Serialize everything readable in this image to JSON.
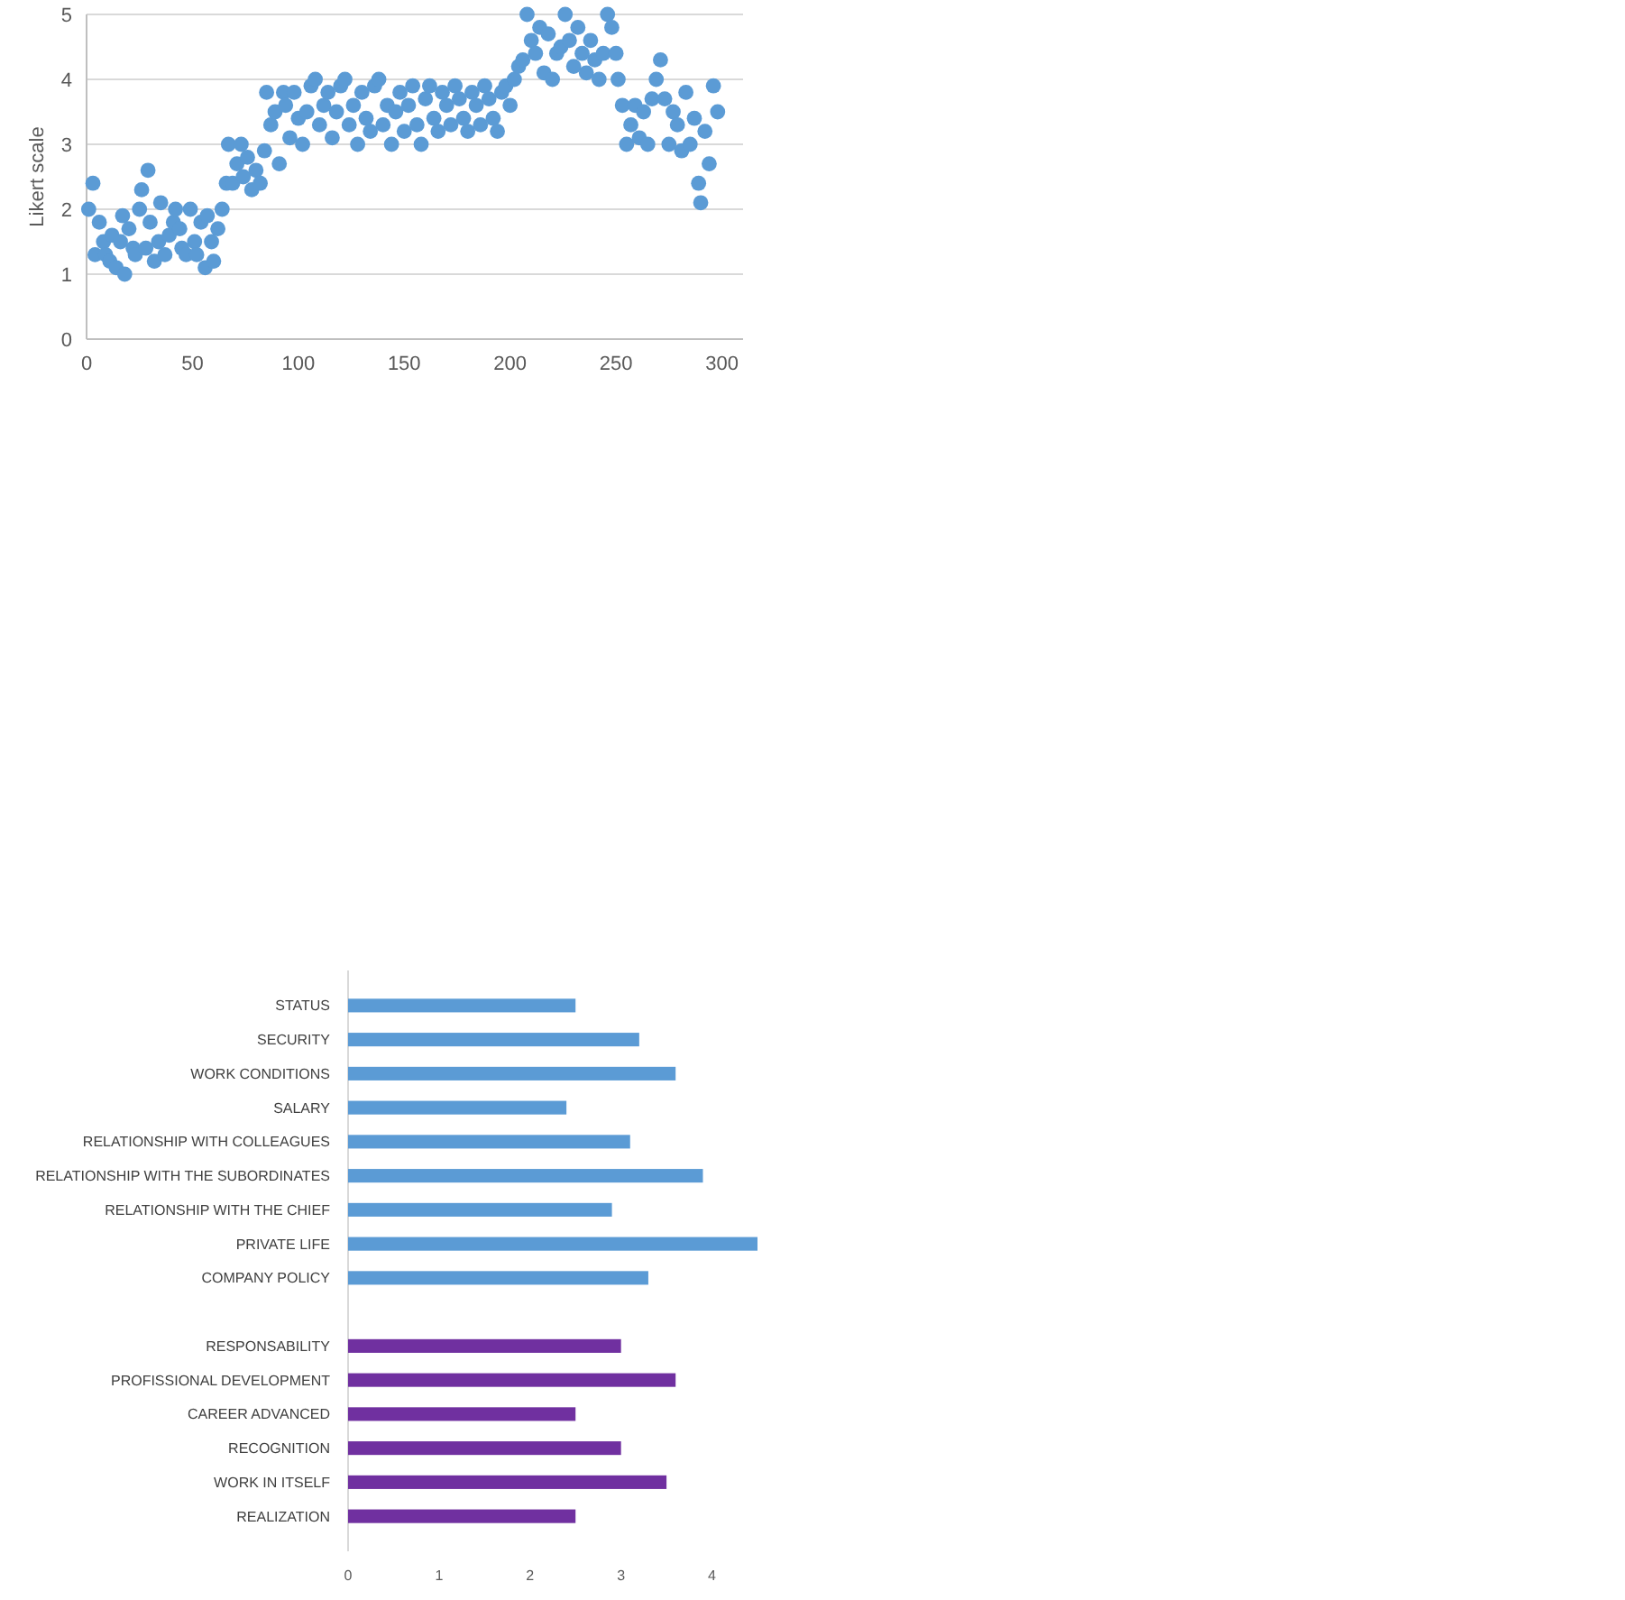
{
  "chart_data": [
    {
      "type": "scatter",
      "ylabel": "Likert scale",
      "color": "#5b9bd5",
      "marker": "circle",
      "grid": "y",
      "xlim": [
        0,
        310
      ],
      "ylim": [
        0,
        5
      ],
      "xticks": [
        0,
        50,
        100,
        150,
        200,
        250,
        300
      ],
      "yticks": [
        0,
        1,
        2,
        3,
        4,
        5
      ],
      "x": [
        1,
        3,
        4,
        6,
        8,
        9,
        11,
        12,
        14,
        16,
        17,
        18,
        20,
        22,
        23,
        25,
        26,
        28,
        29,
        30,
        32,
        34,
        35,
        37,
        39,
        41,
        42,
        44,
        45,
        47,
        49,
        51,
        52,
        54,
        56,
        57,
        59,
        60,
        62,
        64,
        66,
        67,
        69,
        71,
        73,
        74,
        76,
        78,
        80,
        82,
        84,
        85,
        87,
        89,
        91,
        93,
        94,
        96,
        98,
        100,
        102,
        104,
        106,
        108,
        110,
        112,
        114,
        116,
        118,
        120,
        122,
        124,
        126,
        128,
        130,
        132,
        134,
        136,
        138,
        140,
        142,
        144,
        146,
        148,
        150,
        152,
        154,
        156,
        158,
        160,
        162,
        164,
        166,
        168,
        170,
        172,
        174,
        176,
        178,
        180,
        182,
        184,
        186,
        188,
        190,
        192,
        194,
        196,
        198,
        200,
        202,
        204,
        206,
        208,
        210,
        212,
        214,
        216,
        218,
        220,
        222,
        224,
        226,
        228,
        230,
        232,
        234,
        236,
        238,
        240,
        242,
        244,
        246,
        248,
        250,
        251,
        253,
        255,
        257,
        259,
        261,
        263,
        265,
        267,
        269,
        271,
        273,
        275,
        277,
        279,
        281,
        283,
        285,
        287,
        289,
        290,
        292,
        294,
        296,
        298
      ],
      "values": [
        2.0,
        2.4,
        1.3,
        1.8,
        1.5,
        1.3,
        1.2,
        1.6,
        1.1,
        1.5,
        1.9,
        1.0,
        1.7,
        1.4,
        1.3,
        2.0,
        2.3,
        1.4,
        2.6,
        1.8,
        1.2,
        1.5,
        2.1,
        1.3,
        1.6,
        1.8,
        2.0,
        1.7,
        1.4,
        1.3,
        2.0,
        1.5,
        1.3,
        1.8,
        1.1,
        1.9,
        1.5,
        1.2,
        1.7,
        2.0,
        2.4,
        3.0,
        2.4,
        2.7,
        3.0,
        2.5,
        2.8,
        2.3,
        2.6,
        2.4,
        2.9,
        3.8,
        3.3,
        3.5,
        2.7,
        3.8,
        3.6,
        3.1,
        3.8,
        3.4,
        3.0,
        3.5,
        3.9,
        4.0,
        3.3,
        3.6,
        3.8,
        3.1,
        3.5,
        3.9,
        4.0,
        3.3,
        3.6,
        3.0,
        3.8,
        3.4,
        3.2,
        3.9,
        4.0,
        3.3,
        3.6,
        3.0,
        3.5,
        3.8,
        3.2,
        3.6,
        3.9,
        3.3,
        3.0,
        3.7,
        3.9,
        3.4,
        3.2,
        3.8,
        3.6,
        3.3,
        3.9,
        3.7,
        3.4,
        3.2,
        3.8,
        3.6,
        3.3,
        3.9,
        3.7,
        3.4,
        3.2,
        3.8,
        3.9,
        3.6,
        4.0,
        4.2,
        4.3,
        5.0,
        4.6,
        4.4,
        4.8,
        4.1,
        4.7,
        4.0,
        4.4,
        4.5,
        5.0,
        4.6,
        4.2,
        4.8,
        4.4,
        4.1,
        4.6,
        4.3,
        4.0,
        4.4,
        5.0,
        4.8,
        4.4,
        4.0,
        3.6,
        3.0,
        3.3,
        3.6,
        3.1,
        3.5,
        3.0,
        3.7,
        4.0,
        4.3,
        3.7,
        3.0,
        3.5,
        3.3,
        2.9,
        3.8,
        3.0,
        3.4,
        2.4,
        2.1,
        3.2,
        2.7,
        3.9,
        3.5
      ]
    },
    {
      "type": "bar",
      "orientation": "horizontal",
      "xlim": [
        0,
        4.5
      ],
      "xticks": [
        0,
        1,
        2,
        3,
        4
      ],
      "categories": [
        "STATUS",
        "SECURITY",
        "WORK CONDITIONS",
        "SALARY",
        "RELATIONSHIP WITH COLLEAGUES",
        "RELATIONSHIP WITH THE SUBORDINATES",
        "RELATIONSHIP WITH THE CHIEF",
        "PRIVATE LIFE",
        "COMPANY POLICY",
        null,
        "RESPONSABILITY",
        "PROFISSIONAL DEVELOPMENT",
        "CAREER ADVANCED",
        "RECOGNITION",
        "WORK IN ITSELF",
        "REALIZATION"
      ],
      "values": [
        2.5,
        3.2,
        3.6,
        2.4,
        3.1,
        3.9,
        2.9,
        4.5,
        3.3,
        null,
        3.0,
        3.6,
        2.5,
        3.0,
        3.5,
        2.5
      ],
      "colors": [
        "#5b9bd5",
        "#5b9bd5",
        "#5b9bd5",
        "#5b9bd5",
        "#5b9bd5",
        "#5b9bd5",
        "#5b9bd5",
        "#5b9bd5",
        "#5b9bd5",
        null,
        "#7030a0",
        "#7030a0",
        "#7030a0",
        "#7030a0",
        "#7030a0",
        "#7030a0"
      ]
    }
  ]
}
